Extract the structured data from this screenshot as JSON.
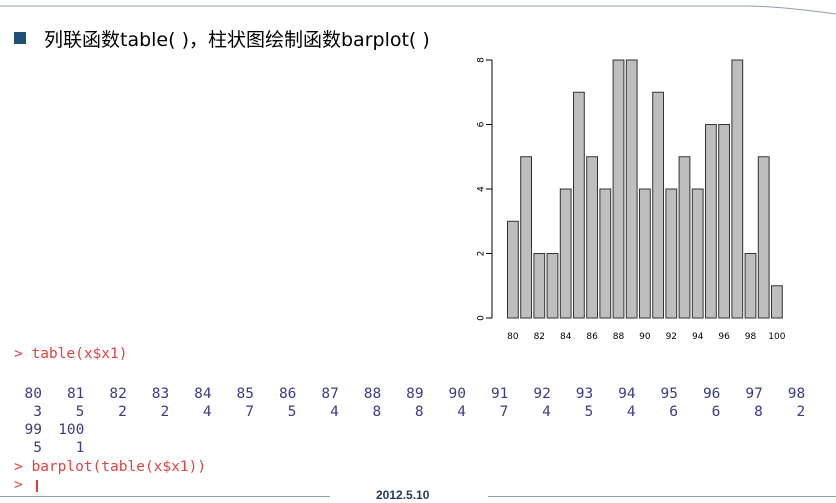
{
  "slide": {
    "title": "列联函数table( )，柱状图绘制函数barplot( )",
    "footer_date": "2012.5.10"
  },
  "console": {
    "command_1": "> table(x$x1)",
    "row_1_labels": [
      "80",
      "81",
      "82",
      "83",
      "84",
      "85",
      "86",
      "87",
      "88",
      "89",
      "90",
      "91",
      "92",
      "93",
      "94",
      "95",
      "96",
      "97",
      "98"
    ],
    "row_1_counts": [
      "3",
      "5",
      "2",
      "2",
      "4",
      "7",
      "5",
      "4",
      "8",
      "8",
      "4",
      "7",
      "4",
      "5",
      "4",
      "6",
      "6",
      "8",
      "2"
    ],
    "row_2_labels": [
      "99",
      "100"
    ],
    "row_2_counts": [
      "5",
      "1"
    ],
    "command_2": "> barplot(table(x$x1))",
    "prompt": ">"
  },
  "chart_data": {
    "type": "bar",
    "categories": [
      "80",
      "81",
      "82",
      "83",
      "84",
      "85",
      "86",
      "87",
      "88",
      "89",
      "90",
      "91",
      "92",
      "93",
      "94",
      "95",
      "96",
      "97",
      "98",
      "99",
      "100"
    ],
    "values": [
      3,
      5,
      2,
      2,
      4,
      7,
      5,
      4,
      8,
      8,
      4,
      7,
      4,
      5,
      4,
      6,
      6,
      8,
      2,
      5,
      1
    ],
    "x_tick_labels": [
      "80",
      "82",
      "84",
      "86",
      "88",
      "90",
      "92",
      "94",
      "96",
      "98",
      "100"
    ],
    "y_ticks": [
      "0",
      "2",
      "4",
      "6",
      "8"
    ],
    "ylim": [
      0,
      8
    ],
    "grid": false,
    "bar_color": "#bebebe"
  },
  "colors": {
    "accent": "#1f4e79",
    "command": "#e0443e",
    "output": "#3b3b8c"
  }
}
